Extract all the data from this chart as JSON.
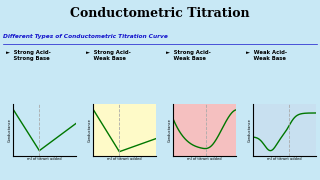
{
  "title": "Conductometric Titration",
  "title_bg": "#7ED348",
  "title_color": "black",
  "subtitle": "Different Types of Conductometric Titration Curve",
  "subtitle_color": "#1515CC",
  "main_bg": "#C8E8F5",
  "panel_bg_colors": [
    "#C8E8F5",
    "#FEFAC8",
    "#F5C0C0",
    "#C8E0F0"
  ],
  "panel_label_color": "black",
  "panel_labels": [
    "✔  Strong Acid-\n    Strong Base",
    "✔  Strong Acid-\n    Weak Base",
    "✔  Strong Acid-\n    Weak Base",
    "✔  Weak Acid-\n    Weak Base"
  ],
  "xlabel": "ml of titrant added",
  "ylabel": "Conductance",
  "curve_color": "#007700",
  "vline_color": "#AAAAAA",
  "title_fontsize": 9,
  "subtitle_fontsize": 4.2,
  "label_fontsize": 3.8,
  "axis_label_fontsize": 2.6
}
